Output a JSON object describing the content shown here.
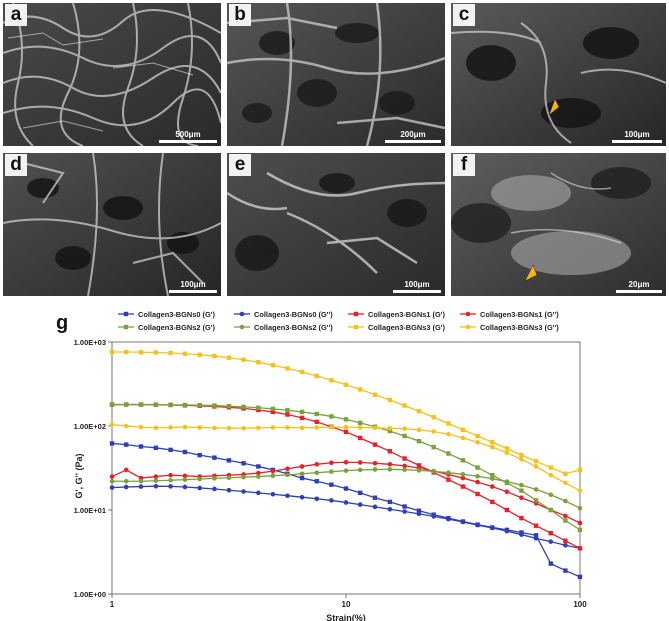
{
  "panels": [
    {
      "label": "a",
      "scale": "500μm"
    },
    {
      "label": "b",
      "scale": "200μm"
    },
    {
      "label": "c",
      "scale": "100μm"
    },
    {
      "label": "d",
      "scale": "100μm"
    },
    {
      "label": "e",
      "scale": "100μm"
    },
    {
      "label": "f",
      "scale": "20μm"
    }
  ],
  "colors": {
    "s0": "#2f3fb8",
    "s1": "#e8202a",
    "s2": "#77a33a",
    "s3": "#f5c21b",
    "arrow": "#f2b21a"
  },
  "chart_data": {
    "panel_label": "g",
    "type": "line",
    "xlabel": "Strain(%)",
    "ylabel": "G', G'' (Pa)",
    "xscale": "log",
    "yscale": "log",
    "xlim": [
      1,
      100
    ],
    "ylim": [
      1,
      1000
    ],
    "x_ticks": [
      "1",
      "10",
      "100"
    ],
    "y_ticks": [
      "1.00E+00",
      "1.00E+01",
      "1.00E+02",
      "1.00E+03"
    ],
    "grid": false,
    "legend_position": "top",
    "x": [
      1,
      1.15,
      1.33,
      1.54,
      1.78,
      2.05,
      2.37,
      2.74,
      3.16,
      3.65,
      4.22,
      4.87,
      5.62,
      6.49,
      7.5,
      8.66,
      10,
      11.5,
      13.3,
      15.4,
      17.8,
      20.5,
      23.7,
      27.4,
      31.6,
      36.5,
      42.2,
      48.7,
      56.2,
      64.9,
      75,
      86.6,
      100
    ],
    "series": [
      {
        "name": "Collagen3-BGNs0 (G')",
        "color": "#2f3fb8",
        "marker": "square",
        "values": [
          62,
          60,
          57,
          55,
          52,
          49,
          45,
          42,
          39,
          36,
          33,
          30,
          27,
          24,
          22,
          20,
          18,
          16,
          14,
          12.5,
          11,
          9.8,
          8.8,
          8,
          7.3,
          6.7,
          6.2,
          5.8,
          5.4,
          5,
          2.3,
          1.9,
          1.6
        ]
      },
      {
        "name": "Collagen3-BGNs0 (G'')",
        "color": "#2f3fb8",
        "marker": "circle",
        "values": [
          18.5,
          18.8,
          19,
          19.2,
          19.1,
          18.8,
          18.3,
          17.8,
          17.2,
          16.6,
          16,
          15.4,
          14.8,
          14.2,
          13.6,
          13,
          12.3,
          11.6,
          10.9,
          10.2,
          9.6,
          9,
          8.4,
          7.8,
          7.2,
          6.6,
          6.1,
          5.6,
          5.1,
          4.6,
          4.2,
          3.8,
          3.5
        ]
      },
      {
        "name": "Collagen3-BGNs1 (G')",
        "color": "#e8202a",
        "marker": "square",
        "values": [
          180,
          180,
          180,
          179,
          178,
          176,
          174,
          171,
          167,
          162,
          155,
          147,
          137,
          125,
          112,
          98,
          85,
          72,
          60,
          50,
          41,
          34,
          28,
          23,
          19,
          15.5,
          12.5,
          10,
          8,
          6.5,
          5.3,
          4.3,
          3.5
        ]
      },
      {
        "name": "Collagen3-BGNs1 (G'')",
        "color": "#e8202a",
        "marker": "circle",
        "values": [
          25,
          30,
          24,
          25,
          26,
          25.5,
          25,
          25.5,
          26,
          26.5,
          27.5,
          29,
          31,
          33,
          35,
          36.5,
          37,
          36.8,
          36,
          35,
          33.5,
          31.5,
          29,
          26.5,
          24,
          21.5,
          19,
          16.5,
          14,
          12,
          10,
          8.5,
          7
        ]
      },
      {
        "name": "Collagen3-BGNs2 (G')",
        "color": "#77a33a",
        "marker": "square",
        "values": [
          180,
          180,
          180,
          180,
          179,
          178,
          177,
          175,
          172,
          169,
          165,
          160,
          154,
          147,
          139,
          130,
          120,
          109,
          98,
          87,
          76,
          66,
          56,
          47,
          39,
          32,
          26,
          21,
          17,
          13,
          10,
          7.5,
          5.8
        ]
      },
      {
        "name": "Collagen3-BGNs2 (G'')",
        "color": "#77a33a",
        "marker": "circle",
        "values": [
          22,
          22,
          22,
          22.3,
          22.6,
          23,
          23.4,
          23.8,
          24.2,
          24.6,
          25,
          25.6,
          26.2,
          27,
          27.8,
          28.6,
          29.4,
          30,
          30.4,
          30.5,
          30.2,
          29.6,
          28.8,
          27.8,
          26.6,
          25.2,
          23.6,
          21.8,
          19.8,
          17.6,
          15.2,
          12.8,
          10.5
        ]
      },
      {
        "name": "Collagen3-BGNs3 (G')",
        "color": "#f5c21b",
        "marker": "square",
        "values": [
          760,
          760,
          755,
          750,
          740,
          725,
          705,
          680,
          650,
          615,
          575,
          530,
          485,
          440,
          395,
          350,
          310,
          272,
          236,
          204,
          175,
          150,
          127,
          107,
          90,
          76,
          64,
          54,
          45,
          38,
          32,
          27,
          30
        ]
      },
      {
        "name": "Collagen3-BGNs3 (G'')",
        "color": "#f5c21b",
        "marker": "circle",
        "values": [
          104,
          100,
          97,
          95,
          96,
          97,
          96,
          95,
          94,
          94,
          95,
          96,
          96,
          95,
          96,
          97,
          97,
          96,
          95,
          94,
          93,
          90,
          86,
          80,
          72,
          64,
          56,
          48,
          40,
          33,
          26,
          21,
          17
        ]
      }
    ]
  }
}
